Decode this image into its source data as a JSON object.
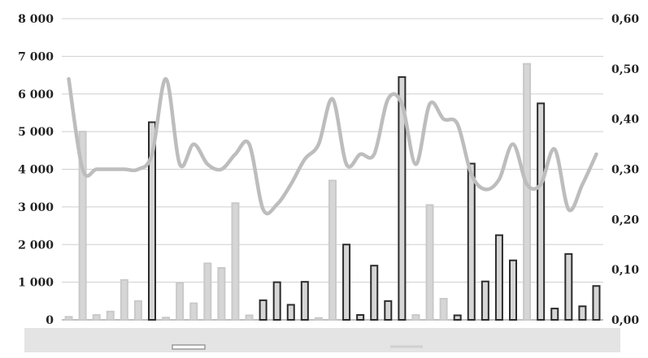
{
  "chart_data": {
    "type": "bar",
    "title": "",
    "xlabel": "",
    "ylabel": "",
    "ylim": [
      0,
      8000
    ],
    "y2lim": [
      0,
      0.6
    ],
    "grid": true,
    "legend_position": "bottom",
    "y_ticks": [
      "0",
      "1 000",
      "2 000",
      "3 000",
      "4 000",
      "5 000",
      "6 000",
      "7 000",
      "8 000"
    ],
    "y2_ticks": [
      "0,00",
      "0,10",
      "0,20",
      "0,30",
      "0,40",
      "0,50",
      "0,60"
    ],
    "bar_values": [
      80,
      5000,
      130,
      220,
      1060,
      500,
      5250,
      60,
      980,
      440,
      1500,
      1380,
      3100,
      120,
      520,
      1000,
      400,
      1010,
      50,
      3700,
      2000,
      130,
      1440,
      500,
      6450,
      130,
      3050,
      560,
      120,
      4150,
      1020,
      2250,
      1580,
      6800,
      5750,
      300,
      1750,
      360,
      900
    ],
    "line_values": [
      0.48,
      0.3,
      0.3,
      0.3,
      0.3,
      0.3,
      0.33,
      0.48,
      0.31,
      0.35,
      0.31,
      0.3,
      0.33,
      0.35,
      0.22,
      0.23,
      0.27,
      0.32,
      0.35,
      0.44,
      0.31,
      0.33,
      0.33,
      0.44,
      0.43,
      0.31,
      0.43,
      0.4,
      0.39,
      0.29,
      0.26,
      0.28,
      0.35,
      0.27,
      0.27,
      0.34,
      0.22,
      0.27,
      0.33
    ],
    "colors": {
      "bar_light": "#c9c9c9",
      "bar_dark": "#2c2c2c",
      "bar_fill": "#d6d6d6",
      "line": "#bdbdbd",
      "grid": "#cfcfcf",
      "legend_bg": "#e4e4e4"
    }
  }
}
